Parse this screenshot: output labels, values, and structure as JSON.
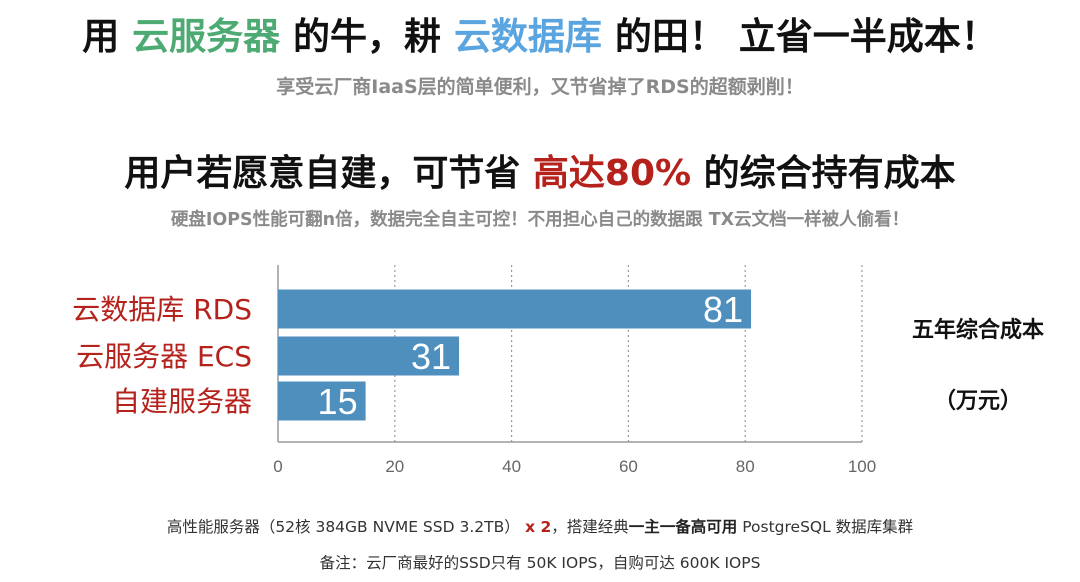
{
  "header": {
    "part1": "用 ",
    "cloud_server": "云服务器",
    "part2": " 的牛，耕 ",
    "cloud_db": "云数据库",
    "part3": " 的田！ 立省一半成本！",
    "subtitle": "享受云厂商IaaS层的简单便利，又节省掉了RDS的超额剥削！"
  },
  "headline2": {
    "part1": "用户若愿意自建，可节省 ",
    "highlight": "高达80%",
    "part2": " 的综合持有成本",
    "subtitle": "硬盘IOPS性能可翻n倍，数据完全自主可控！不用担心自己的数据跟 TX云文档一样被人偷看！"
  },
  "chart_data": {
    "type": "bar",
    "orientation": "horizontal",
    "categories": [
      "云数据库 RDS",
      "云服务器 ECS",
      "自建服务器"
    ],
    "values": [
      81,
      31,
      15
    ],
    "xlim": [
      0,
      100
    ],
    "x_ticks": [
      0,
      20,
      40,
      60,
      80,
      100
    ],
    "grid": "vertical dotted",
    "bar_color": "#4f8fbd",
    "category_label_color": "#b5221c",
    "side_label": "五年综合成本",
    "unit_label": "（万元）"
  },
  "footer": {
    "line1_a": "高性能服务器（52核 384GB NVME SSD 3.2TB）",
    "line1_x2": " x 2",
    "line1_b": "，搭建经典",
    "line1_emph": "一主一备高可用",
    "line1_c": " PostgreSQL 数据库集群",
    "line2": "备注：云厂商最好的SSD只有 50K IOPS，自购可达 600K IOPS"
  }
}
